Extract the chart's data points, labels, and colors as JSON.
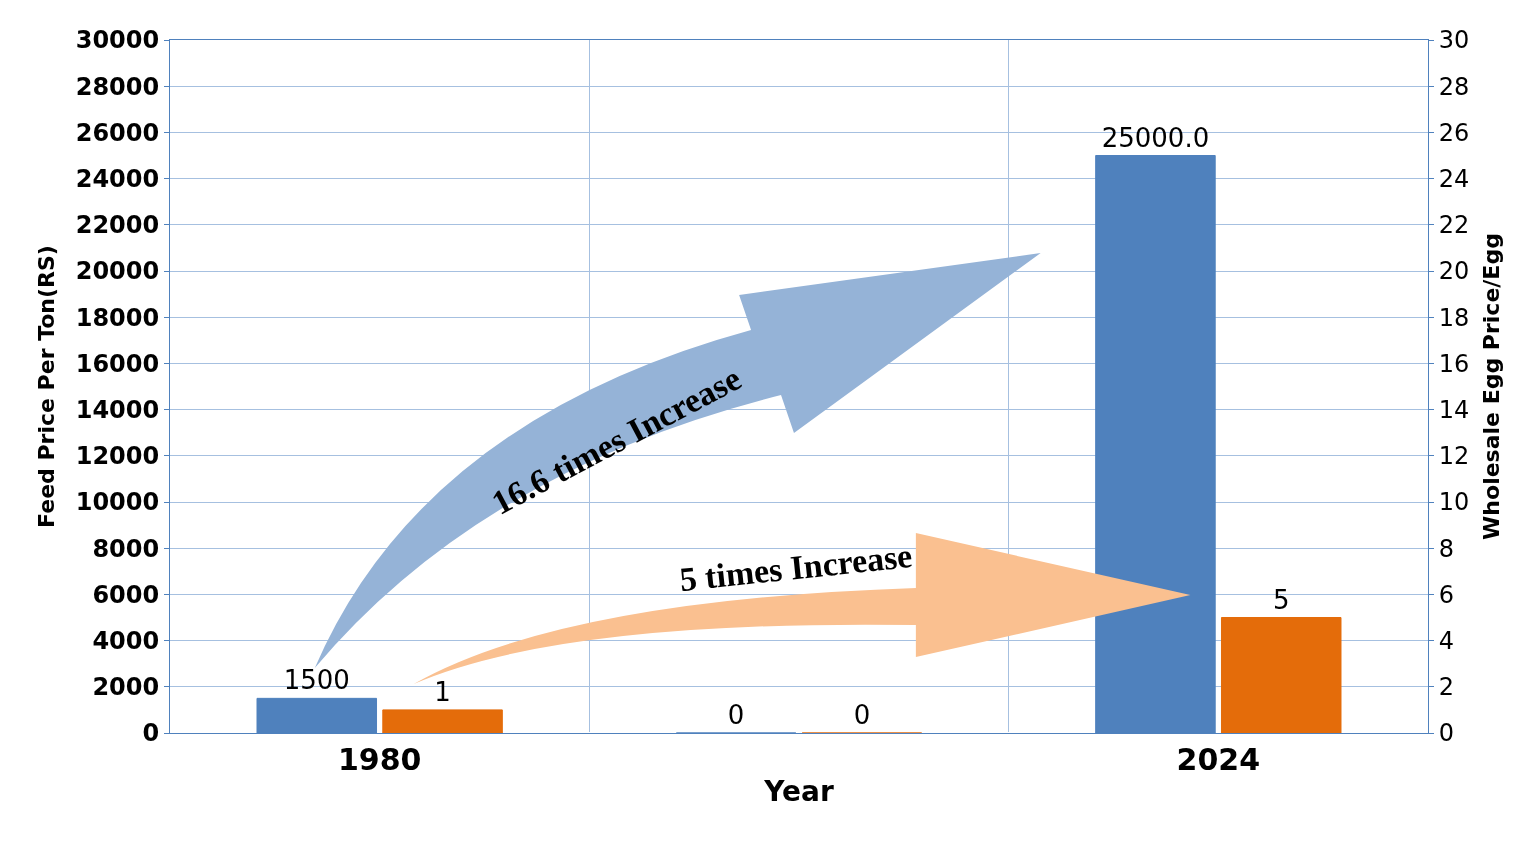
{
  "chart_data": {
    "type": "bar",
    "categories": [
      "1980",
      null,
      "2024"
    ],
    "xlabel": "Year",
    "ylabel": "Feed Price Per Ton(RS)",
    "y2label": "Wholesale Egg Price/Egg",
    "series": [
      {
        "color": "#4f81bd",
        "values": [
          1500,
          0,
          25000
        ],
        "value_labels": [
          "1500",
          "0",
          "25000.0"
        ]
      },
      {
        "color": "#e46c0a",
        "values": [
          1,
          0,
          5
        ],
        "value_labels": [
          "1",
          "0",
          "5"
        ],
        "axis": "y2"
      }
    ],
    "ylim": [
      0,
      30000
    ],
    "yticks": [
      0,
      2000,
      4000,
      6000,
      8000,
      10000,
      12000,
      14000,
      16000,
      18000,
      20000,
      22000,
      24000,
      26000,
      28000,
      30000
    ],
    "y2lim": [
      0,
      30
    ],
    "y2ticks": [
      0,
      2,
      4,
      6,
      8,
      10,
      12,
      14,
      16,
      18,
      20,
      22,
      24,
      26,
      28,
      30
    ],
    "annotations": [
      "16.6 times Increase",
      "5 times Increase"
    ],
    "grid": true,
    "legend": false
  }
}
